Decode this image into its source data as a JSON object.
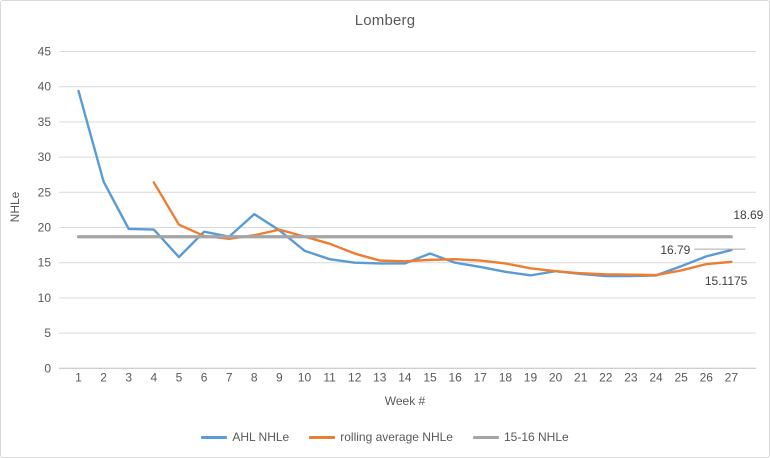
{
  "chart_data": {
    "type": "line",
    "title": "Lomberg",
    "xlabel": "Week #",
    "ylabel": "NHLe",
    "ylim": [
      0,
      45
    ],
    "ytick_step": 5,
    "grid": true,
    "legend_position": "bottom",
    "x": [
      1,
      2,
      3,
      4,
      5,
      6,
      7,
      8,
      9,
      10,
      11,
      12,
      13,
      14,
      15,
      16,
      17,
      18,
      19,
      20,
      21,
      22,
      23,
      24,
      25,
      26,
      27
    ],
    "series": [
      {
        "name": "AHL NHLe",
        "color": "#5B9BD5",
        "values": [
          39.4,
          26.5,
          19.8,
          19.7,
          15.8,
          19.4,
          18.7,
          21.9,
          19.6,
          16.7,
          15.5,
          15.0,
          14.9,
          14.9,
          16.3,
          15.0,
          14.4,
          13.7,
          13.2,
          13.8,
          13.4,
          13.1,
          13.1,
          13.2,
          14.5,
          15.9,
          16.79
        ]
      },
      {
        "name": "rolling average NHLe",
        "color": "#ED7D31",
        "values": [
          null,
          null,
          null,
          26.4,
          20.4,
          18.8,
          18.4,
          18.9,
          19.7,
          18.7,
          17.7,
          16.3,
          15.3,
          15.2,
          15.4,
          15.5,
          15.3,
          14.9,
          14.2,
          13.8,
          13.5,
          13.35,
          13.3,
          13.25,
          13.9,
          14.8,
          15.1175
        ]
      },
      {
        "name": "15-16 NHLe",
        "color": "#A5A5A5",
        "constant_value": 18.69
      }
    ],
    "annotations": [
      {
        "text": "18.69",
        "series": "15-16 NHLe",
        "week": 27
      },
      {
        "text": "16.79",
        "series": "AHL NHLe",
        "week": 27
      },
      {
        "text": "15.1175",
        "series": "rolling average NHLe",
        "week": 27
      }
    ],
    "colors": {
      "gridline": "#D9D9D9",
      "axis_line": "#BFBFBF",
      "tick_text": "#595959",
      "title_text": "#595959",
      "data_label_text": "#404040",
      "leader_line": "#A6A6A6"
    }
  }
}
